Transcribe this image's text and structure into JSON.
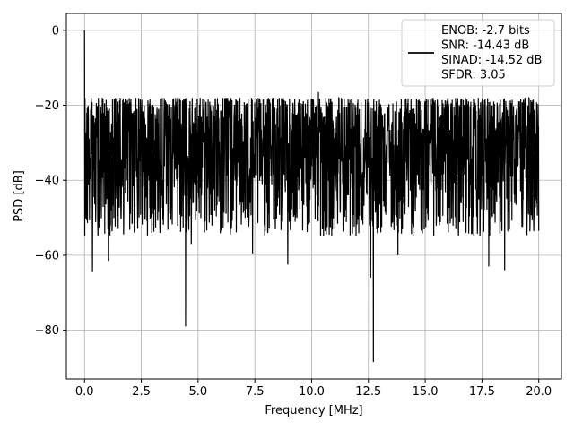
{
  "chart_data": {
    "type": "line",
    "title": "",
    "xlabel": "Frequency [MHz]",
    "ylabel": "PSD [dB]",
    "xlim": [
      -0.8,
      21.0
    ],
    "ylim": [
      -93,
      4.5
    ],
    "xticks": [
      0.0,
      2.5,
      5.0,
      7.5,
      10.0,
      12.5,
      15.0,
      17.5,
      20.0
    ],
    "xtick_labels": [
      "0.0",
      "2.5",
      "5.0",
      "7.5",
      "10.0",
      "12.5",
      "15.0",
      "17.5",
      "20.0"
    ],
    "yticks": [
      0,
      -20,
      -40,
      -60,
      -80
    ],
    "ytick_labels": [
      "0",
      "−20",
      "−40",
      "−60",
      "−80"
    ],
    "grid": true,
    "legend": {
      "placement": "top-right",
      "entries": [
        "ENOB: -2.7 bits",
        "SNR: -14.43 dB",
        "SINAD: -14.52 dB",
        "SFDR: 3.05"
      ]
    },
    "series": [
      {
        "color": "#000000",
        "x_range": [
          0.0,
          20.0
        ],
        "noise_floor_db": -33,
        "noise_band_db": [
          -55,
          -18
        ],
        "peaks": [
          {
            "x": 0.0,
            "y": 0.0
          },
          {
            "x": 0.02,
            "y": -18.0
          },
          {
            "x": 10.3,
            "y": -16.5
          }
        ],
        "notches": [
          {
            "x": 0.35,
            "y": -64.5
          },
          {
            "x": 1.05,
            "y": -61.5
          },
          {
            "x": 4.45,
            "y": -79.0
          },
          {
            "x": 4.7,
            "y": -57.0
          },
          {
            "x": 7.4,
            "y": -59.5
          },
          {
            "x": 8.95,
            "y": -62.5
          },
          {
            "x": 12.6,
            "y": -66.0
          },
          {
            "x": 12.72,
            "y": -88.5
          },
          {
            "x": 13.8,
            "y": -60.0
          },
          {
            "x": 17.8,
            "y": -63.0
          },
          {
            "x": 18.5,
            "y": -64.0
          }
        ]
      }
    ]
  }
}
